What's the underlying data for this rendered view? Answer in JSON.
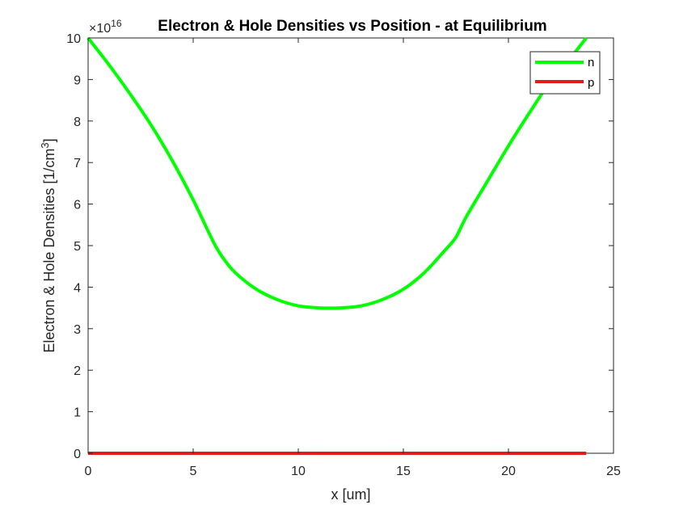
{
  "chart_data": {
    "type": "line",
    "title": "Electron & Hole Densities vs Position - at Equilibrium",
    "xlabel": "x [um]",
    "ylabel_main": "Electron & Hole Densities [1/cm",
    "ylabel_sup": "3",
    "ylabel_close": "]",
    "y_exponent_prefix": "×10",
    "y_exponent_power": "16",
    "xlim": [
      0,
      25
    ],
    "ylim": [
      0,
      10
    ],
    "xticks": [
      0,
      5,
      10,
      15,
      20,
      25
    ],
    "yticks": [
      0,
      1,
      2,
      3,
      4,
      5,
      6,
      7,
      8,
      9,
      10
    ],
    "grid": false,
    "legend_position": "top-right",
    "series": [
      {
        "name": "n",
        "color": "#00ff00",
        "x": [
          0,
          1,
          2,
          3,
          4,
          5,
          6,
          6.5,
          7,
          8,
          9,
          10,
          11,
          12,
          13,
          14,
          15,
          16,
          17,
          17.5,
          18,
          19,
          20,
          21,
          22,
          23,
          23.7
        ],
        "y": [
          10,
          9.35,
          8.65,
          7.9,
          7.05,
          6.1,
          5.05,
          4.65,
          4.35,
          3.95,
          3.7,
          3.55,
          3.5,
          3.5,
          3.55,
          3.7,
          3.95,
          4.35,
          4.9,
          5.2,
          5.7,
          6.55,
          7.4,
          8.2,
          8.95,
          9.55,
          10
        ]
      },
      {
        "name": "p",
        "color": "#e41a1c",
        "x": [
          0,
          5,
          10,
          15,
          20,
          23.7
        ],
        "y": [
          0,
          0,
          0,
          0,
          0,
          0
        ]
      }
    ]
  }
}
